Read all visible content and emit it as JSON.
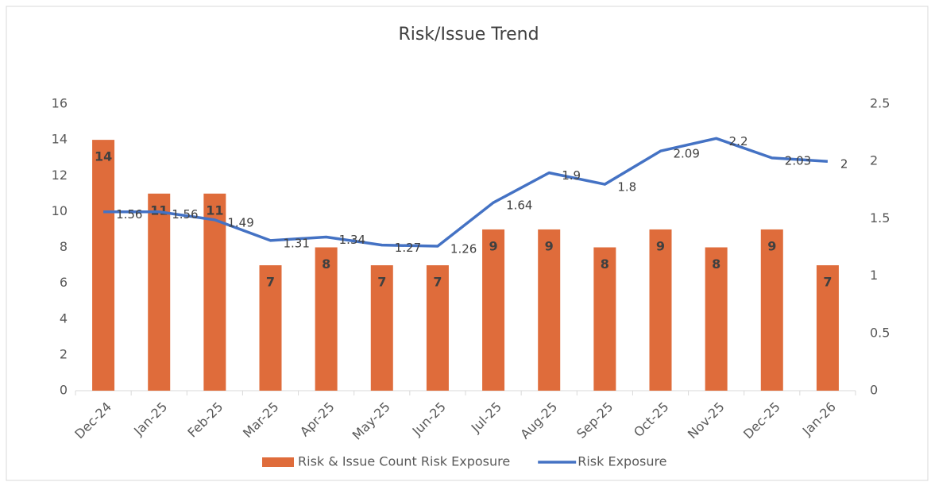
{
  "chart_data": {
    "type": "bar",
    "title": "Risk/Issue Trend",
    "categories": [
      "Dec-24",
      "Jan-25",
      "Feb-25",
      "Mar-25",
      "Apr-25",
      "May-25",
      "Jun-25",
      "Jul-25",
      "Aug-25",
      "Sep-25",
      "Oct-25",
      "Nov-25",
      "Dec-25",
      "Jan-26"
    ],
    "series": [
      {
        "name": "Risk & Issue Count Risk Exposure",
        "type": "bar",
        "color": "#df6c3b",
        "values": [
          14,
          11,
          11,
          7,
          8,
          7,
          7,
          9,
          9,
          8,
          9,
          8,
          9,
          7
        ]
      },
      {
        "name": "Risk Exposure",
        "type": "line",
        "axis": "y2",
        "color": "#4472c4",
        "values": [
          1.56,
          1.56,
          1.49,
          1.31,
          1.34,
          1.27,
          1.26,
          1.64,
          1.9,
          1.8,
          2.09,
          2.2,
          2.03,
          2
        ]
      }
    ],
    "ylim": [
      0,
      16
    ],
    "yticks": [
      0,
      2,
      4,
      6,
      8,
      10,
      12,
      14,
      16
    ],
    "y2lim": [
      0,
      2.5
    ],
    "y2ticks": [
      0,
      0.5,
      1,
      1.5,
      2,
      2.5
    ],
    "legend": "bottom"
  }
}
